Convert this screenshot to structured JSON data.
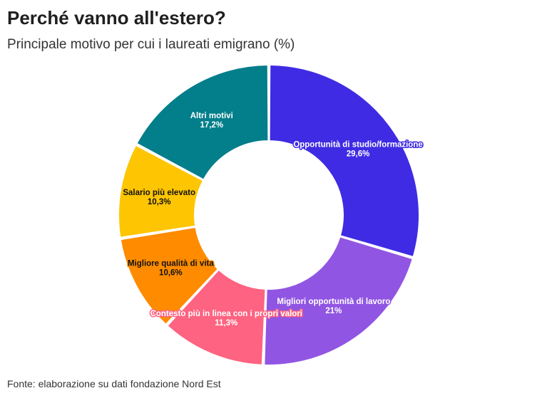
{
  "title": "Perché vanno all'estero?",
  "subtitle": "Principale motivo per cui i laureati emigrano (%)",
  "source": "Fonte: elaborazione su dati fondazione Nord Est",
  "chart_data": {
    "type": "pie",
    "donut": true,
    "unit": "%",
    "slices": [
      {
        "label": "Opportunità di studio/formazione",
        "value": 29.6,
        "value_label": "29,6%",
        "color": "#3f2be3",
        "text_color": "#ffffff"
      },
      {
        "label": "Migliori opportunità di lavoro",
        "value": 21,
        "value_label": "21%",
        "color": "#9155e3",
        "text_color": "#ffffff"
      },
      {
        "label": "Contesto più in linea con i propri valori",
        "value": 11.3,
        "value_label": "11,3%",
        "color": "#fe6381",
        "text_color": "#ffffff"
      },
      {
        "label": "Migliore qualità di vita",
        "value": 10.6,
        "value_label": "10,6%",
        "color": "#fe8b00",
        "text_color": "#111111"
      },
      {
        "label": "Salario più elevato",
        "value": 10.3,
        "value_label": "10,3%",
        "color": "#fec502",
        "text_color": "#111111"
      },
      {
        "label": "Altri motivi",
        "value": 17.2,
        "value_label": "17,2%",
        "color": "#037e8b",
        "text_color": "#ffffff"
      }
    ]
  }
}
